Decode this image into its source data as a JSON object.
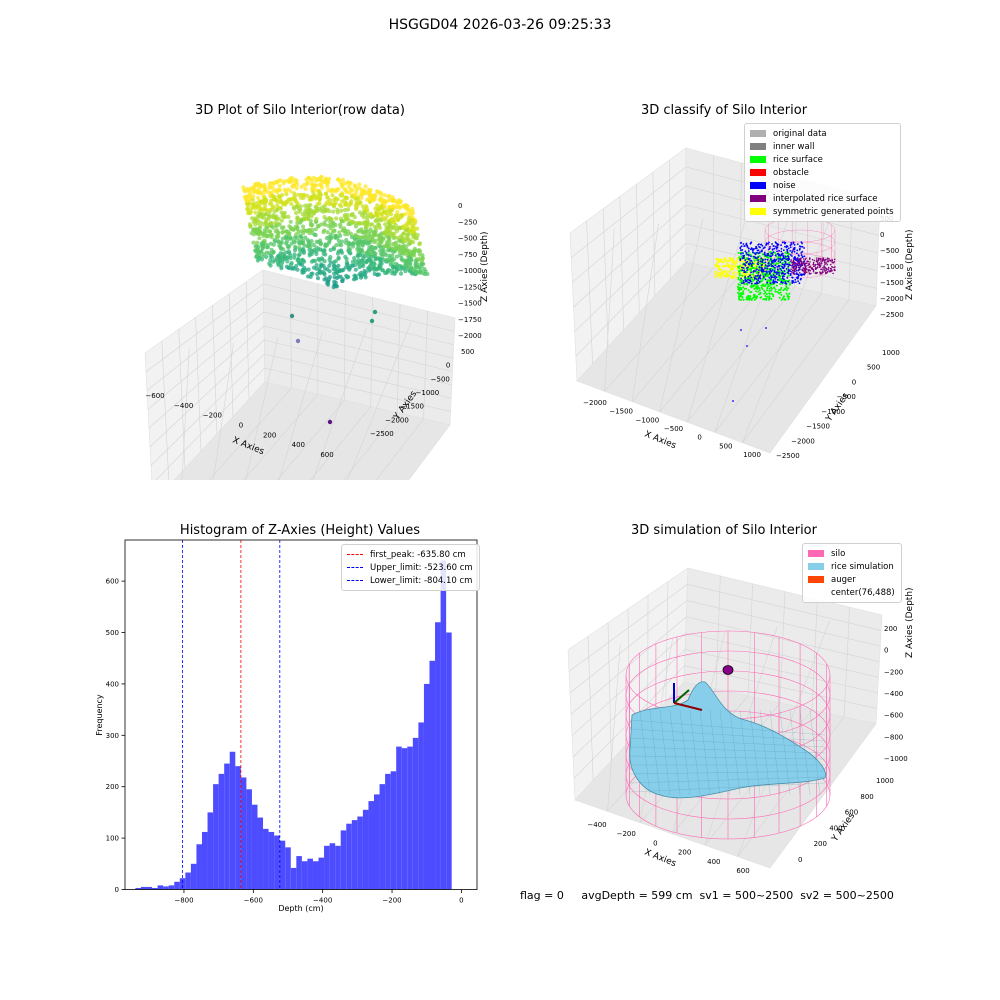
{
  "suptitle": "HSGGD04 2026-03-26 09:25:33",
  "footer": "flag = 0     avgDepth = 599 cm  sv1 = 500~2500  sv2 = 500~2500",
  "colors": {
    "hist_bar": "#4d4dff",
    "first_peak": "#ff0000",
    "limits": "#0000ff",
    "original": "#b0b0b0",
    "inner_wall": "#808080",
    "rice": "#00ff00",
    "obstacle": "#ff0000",
    "noise": "#0000ff",
    "interp": "#800080",
    "symmetric": "#ffff00",
    "silo": "#ff69b4",
    "rice_sim": "#87ceeb",
    "auger": "#ff4500"
  },
  "plot1": {
    "title": "3D Plot of Silo Interior(row data)",
    "x_ticks": [
      "−600",
      "−400",
      "−200",
      "0",
      "200",
      "400",
      "600"
    ],
    "y_ticks": [
      "500",
      "0",
      "−500",
      "−1000",
      "−1500",
      "−2000",
      "−2500"
    ],
    "z_ticks": [
      "0",
      "−250",
      "−500",
      "−750",
      "−1000",
      "−1250",
      "−1500",
      "−1750",
      "−2000"
    ],
    "xlabel": "X Axies",
    "ylabel": "Y Axies",
    "zlabel": "Z Axies (Depth)"
  },
  "plot2": {
    "title": "3D classify of Silo Interior",
    "legend": [
      "original data",
      "inner wall",
      "rice surface",
      "obstacle",
      "noise",
      "interpolated rice surface",
      "symmetric generated points"
    ],
    "x_ticks": [
      "−2000",
      "−1500",
      "−1000",
      "−500",
      "0",
      "500",
      "1000"
    ],
    "y_ticks": [
      "1000",
      "500",
      "0",
      "−500",
      "−1000",
      "−1500",
      "−2000",
      "−2500"
    ],
    "z_ticks": [
      "500",
      "0",
      "−500",
      "−1000",
      "−1500",
      "−2000",
      "−2500"
    ],
    "xlabel": "X Axies",
    "ylabel": "Y Axies",
    "zlabel": "Z Axies (Depth)"
  },
  "plot4": {
    "title": "3D simulation of Silo Interior",
    "legend": [
      "silo",
      "rice simulation",
      "auger",
      "center(76,488)"
    ],
    "x_ticks": [
      "−400",
      "−200",
      "0",
      "200",
      "400",
      "600"
    ],
    "y_ticks": [
      "0",
      "200",
      "400",
      "600",
      "800",
      "1000"
    ],
    "z_ticks": [
      "200",
      "0",
      "−200",
      "−400",
      "−600",
      "−800",
      "−1000"
    ],
    "xlabel": "X Axies",
    "ylabel": "Y Axies",
    "zlabel": "Z Axies (Depth)"
  },
  "chart_data": [
    {
      "type": "bar",
      "title": "Histogram of Z-Axies (Height) Values",
      "xlabel": "Depth (cm)",
      "ylabel": "Frequency",
      "xlim": [
        -970,
        45
      ],
      "ylim": [
        0,
        680
      ],
      "x_ticks": [
        -800,
        -600,
        -400,
        -200,
        0
      ],
      "y_ticks": [
        0,
        100,
        200,
        300,
        400,
        500,
        600
      ],
      "bin_width": 16,
      "bin_starts": [
        -940,
        -924,
        -908,
        -892,
        -876,
        -860,
        -844,
        -828,
        -812,
        -796,
        -780,
        -764,
        -748,
        -732,
        -716,
        -700,
        -684,
        -668,
        -652,
        -636,
        -620,
        -604,
        -588,
        -572,
        -556,
        -540,
        -524,
        -508,
        -492,
        -476,
        -460,
        -444,
        -428,
        -412,
        -396,
        -380,
        -364,
        -348,
        -332,
        -316,
        -300,
        -284,
        -268,
        -252,
        -236,
        -220,
        -204,
        -188,
        -172,
        -156,
        -140,
        -124,
        -108,
        -92,
        -76,
        -60,
        -44,
        -28,
        -12
      ],
      "counts": [
        3,
        5,
        5,
        3,
        8,
        6,
        8,
        15,
        22,
        33,
        50,
        88,
        112,
        150,
        205,
        225,
        245,
        268,
        240,
        218,
        195,
        165,
        140,
        118,
        112,
        105,
        95,
        82,
        42,
        65,
        55,
        60,
        55,
        62,
        85,
        90,
        85,
        115,
        128,
        135,
        142,
        155,
        172,
        185,
        205,
        225,
        230,
        278,
        275,
        278,
        295,
        325,
        400,
        445,
        520,
        640,
        500,
        0,
        0
      ],
      "vlines": [
        {
          "label": "first_peak: -635.80 cm",
          "x": -635.8,
          "color": "#ff0000"
        },
        {
          "label": "Upper_limit: -523.60 cm",
          "x": -523.6,
          "color": "#0000ff"
        },
        {
          "label": "Lower_limit: -804.10 cm",
          "x": -804.1,
          "color": "#0000ff"
        }
      ]
    }
  ]
}
